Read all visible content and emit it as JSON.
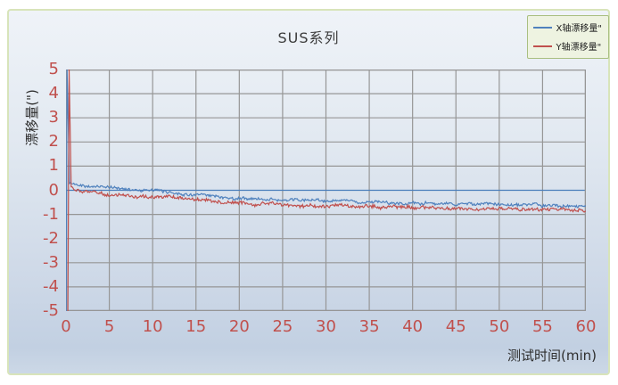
{
  "chart_data": {
    "type": "line",
    "title": "SUS系列",
    "xlabel": "测试时间(min)",
    "ylabel": "漂移量(\")",
    "xlim": [
      0,
      60
    ],
    "ylim": [
      -5,
      5
    ],
    "x_ticks": [
      0,
      5,
      10,
      15,
      20,
      25,
      30,
      35,
      40,
      45,
      50,
      55,
      60
    ],
    "y_ticks": [
      5,
      4,
      3,
      2,
      1,
      0,
      -1,
      -2,
      -3,
      -4,
      -5
    ],
    "grid": true,
    "legend_position": "top-right",
    "sample_step_min": 0.1,
    "series": [
      {
        "name": "X轴漂移量\"",
        "color": "#4f81bd",
        "initial_spike": {
          "x_down": 0.02,
          "x_up": 0.12,
          "from": -5,
          "to": 5
        },
        "noise_amplitude": 0.05,
        "trend_x": [
          0.4,
          1,
          2,
          3,
          4,
          5,
          6,
          7,
          8,
          9,
          10,
          12,
          14,
          16,
          18,
          20,
          22,
          25,
          28,
          30,
          32,
          35,
          38,
          40,
          42,
          45,
          48,
          50,
          52,
          55,
          58,
          60
        ],
        "trend_y": [
          0.28,
          0.25,
          0.22,
          0.18,
          0.14,
          0.12,
          0.08,
          0.05,
          0.03,
          0.01,
          -0.02,
          -0.08,
          -0.15,
          -0.22,
          -0.28,
          -0.33,
          -0.37,
          -0.4,
          -0.43,
          -0.45,
          -0.47,
          -0.5,
          -0.51,
          -0.52,
          -0.54,
          -0.56,
          -0.58,
          -0.6,
          -0.61,
          -0.63,
          -0.64,
          -0.65
        ]
      },
      {
        "name": "Y轴漂移量\"",
        "color": "#c0504d",
        "initial_spike": {
          "x_down": 0.22,
          "x_up": 0.36,
          "from": -5,
          "to": 5
        },
        "noise_amplitude": 0.06,
        "trend_x": [
          0.6,
          1,
          2,
          3,
          4,
          5,
          6,
          7,
          8,
          9,
          10,
          12,
          14,
          16,
          18,
          20,
          22,
          25,
          28,
          30,
          32,
          35,
          38,
          40,
          42,
          45,
          48,
          50,
          52,
          55,
          58,
          60
        ],
        "trend_y": [
          0.1,
          0.02,
          -0.05,
          -0.1,
          -0.13,
          -0.17,
          -0.2,
          -0.22,
          -0.24,
          -0.25,
          -0.27,
          -0.31,
          -0.36,
          -0.42,
          -0.48,
          -0.52,
          -0.56,
          -0.58,
          -0.61,
          -0.63,
          -0.65,
          -0.68,
          -0.71,
          -0.73,
          -0.74,
          -0.76,
          -0.77,
          -0.78,
          -0.8,
          -0.82,
          -0.84,
          -0.85
        ]
      }
    ],
    "colors": {
      "tick_label": "#c0504d",
      "gridline": "#969696",
      "plot_border": "#969696",
      "zero_axis_line": "#4a7ebb",
      "chart_border": "#d8e4ba",
      "legend_bg": "#eef3e1",
      "legend_border": "#a9bf81",
      "bg_top": "#eff3f8",
      "bg_bottom": "#c2d0e2",
      "title_text": "#3b3b3b"
    }
  }
}
